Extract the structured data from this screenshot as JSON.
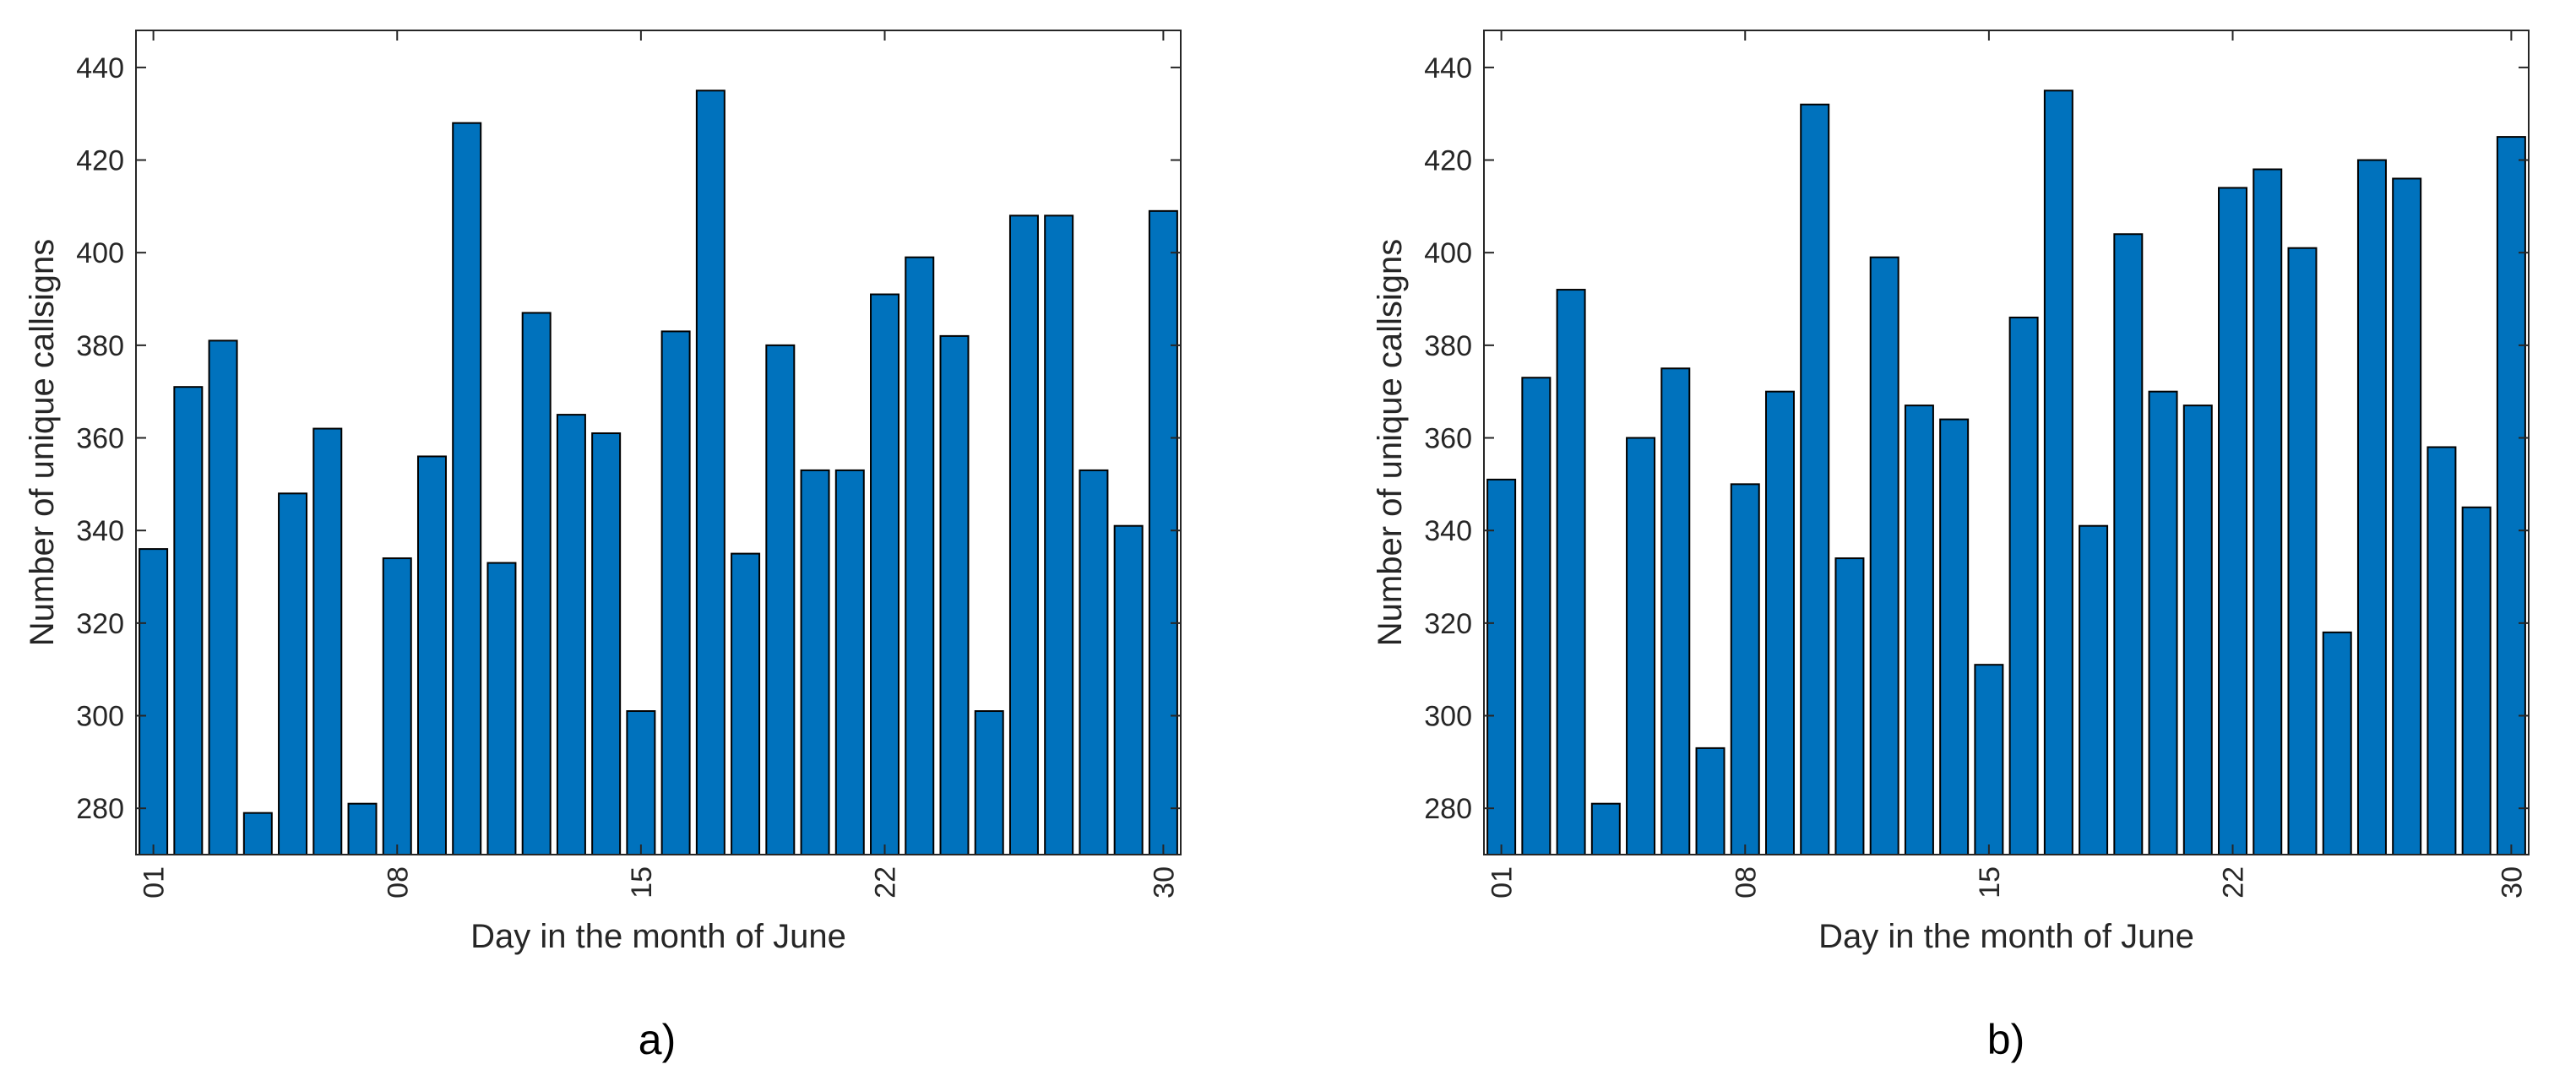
{
  "chart_data": [
    {
      "type": "bar",
      "panel_label": "a)",
      "xlabel": "Day in the month of June",
      "ylabel": "Number of unique callsigns",
      "x": [
        1,
        2,
        3,
        4,
        5,
        6,
        7,
        8,
        9,
        10,
        11,
        12,
        13,
        14,
        15,
        16,
        17,
        18,
        19,
        20,
        21,
        22,
        23,
        24,
        25,
        26,
        27,
        28,
        29,
        30
      ],
      "values": [
        336,
        371,
        381,
        279,
        348,
        362,
        281,
        334,
        356,
        428,
        333,
        387,
        365,
        361,
        301,
        383,
        435,
        335,
        380,
        353,
        353,
        391,
        399,
        382,
        301,
        408,
        408,
        353,
        341,
        409
      ],
      "xticks": [
        1,
        8,
        15,
        22,
        30
      ],
      "xtick_labels": [
        "01",
        "08",
        "15",
        "22",
        "30"
      ],
      "yticks": [
        280,
        300,
        320,
        340,
        360,
        380,
        400,
        420,
        440
      ],
      "ytick_labels": [
        "280",
        "300",
        "320",
        "340",
        "360",
        "380",
        "400",
        "420",
        "440"
      ],
      "xlim": [
        0.5,
        30.5
      ],
      "ylim": [
        270,
        448
      ],
      "bar_color": "#0072BD",
      "grid": false
    },
    {
      "type": "bar",
      "panel_label": "b)",
      "xlabel": "Day in the month of June",
      "ylabel": "Number of unique callsigns",
      "x": [
        1,
        2,
        3,
        4,
        5,
        6,
        7,
        8,
        9,
        10,
        11,
        12,
        13,
        14,
        15,
        16,
        17,
        18,
        19,
        20,
        21,
        22,
        23,
        24,
        25,
        26,
        27,
        28,
        29,
        30
      ],
      "values": [
        351,
        373,
        392,
        281,
        360,
        375,
        293,
        350,
        370,
        432,
        334,
        399,
        367,
        364,
        311,
        386,
        435,
        341,
        404,
        370,
        367,
        414,
        418,
        401,
        318,
        420,
        416,
        358,
        345,
        425
      ],
      "xticks": [
        1,
        8,
        15,
        22,
        30
      ],
      "xtick_labels": [
        "01",
        "08",
        "15",
        "22",
        "30"
      ],
      "yticks": [
        280,
        300,
        320,
        340,
        360,
        380,
        400,
        420,
        440
      ],
      "ytick_labels": [
        "280",
        "300",
        "320",
        "340",
        "360",
        "380",
        "400",
        "420",
        "440"
      ],
      "xlim": [
        0.5,
        30.5
      ],
      "ylim": [
        270,
        448
      ],
      "bar_color": "#0072BD",
      "grid": false
    }
  ]
}
